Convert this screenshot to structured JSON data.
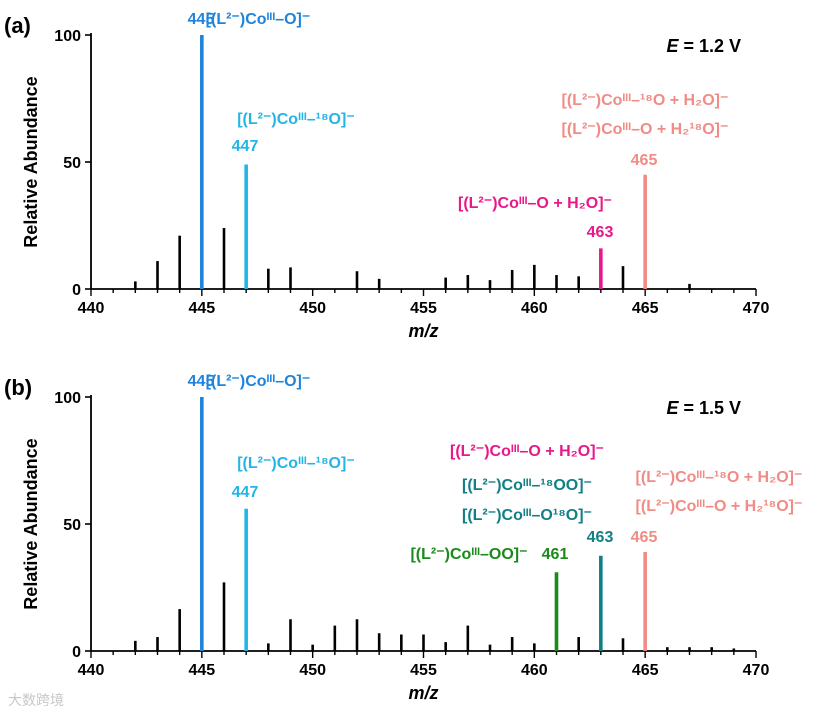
{
  "chart_data": [
    {
      "type": "bar",
      "panel_label": "(a)",
      "condition_label": "E",
      "condition_value": "= 1.2 V",
      "xlabel": "m/z",
      "ylabel": "Relative Abundance",
      "xlim": [
        440,
        470
      ],
      "ylim": [
        0,
        100
      ],
      "xticks": [
        "440",
        "445",
        "450",
        "455",
        "460",
        "465",
        "470"
      ],
      "yticks": [
        "0",
        "50",
        "100"
      ],
      "x": [
        442,
        443,
        444,
        445,
        446,
        447,
        448,
        449,
        452,
        453,
        456,
        457,
        458,
        459,
        460,
        461,
        462,
        463,
        464,
        465,
        467
      ],
      "values": [
        3,
        11,
        21,
        100,
        24,
        49,
        8,
        8.5,
        7,
        4,
        4.5,
        5.5,
        3.5,
        7.5,
        9.5,
        5.5,
        5,
        16,
        9,
        45,
        2
      ],
      "colors": [
        "#000000",
        "#000000",
        "#000000",
        "#1f83dc",
        "#000000",
        "#22b5e6",
        "#000000",
        "#000000",
        "#000000",
        "#000000",
        "#000000",
        "#000000",
        "#000000",
        "#000000",
        "#000000",
        "#000000",
        "#000000",
        "#e8178a",
        "#000000",
        "#f08c85",
        "#000000"
      ],
      "peaks": [
        {
          "mz": 445,
          "color": "#1f83dc",
          "number": "445",
          "line1": "[(L²⁻)Coᴵᴵᴵ–O]⁻"
        },
        {
          "mz": 447,
          "color": "#22b5e6",
          "number": "447",
          "line1": "[(L²⁻)Coᴵᴵᴵ–¹⁸O]⁻"
        },
        {
          "mz": 463,
          "color": "#e8178a",
          "number": "463",
          "line1": "[(L²⁻)Coᴵᴵᴵ–O + H₂O]⁻"
        },
        {
          "mz": 465,
          "color": "#f08c85",
          "number": "465",
          "line1": "[(L²⁻)Coᴵᴵᴵ–¹⁸O + H₂O]⁻",
          "line2": "[(L²⁻)Coᴵᴵᴵ–O + H₂¹⁸O]⁻"
        }
      ]
    },
    {
      "type": "bar",
      "panel_label": "(b)",
      "condition_label": "E",
      "condition_value": "= 1.5 V",
      "xlabel": "m/z",
      "ylabel": "Relative Abundance",
      "xlim": [
        440,
        470
      ],
      "ylim": [
        0,
        100
      ],
      "xticks": [
        "440",
        "445",
        "450",
        "455",
        "460",
        "465",
        "470"
      ],
      "yticks": [
        "0",
        "50",
        "100"
      ],
      "x": [
        442,
        443,
        444,
        445,
        446,
        447,
        448,
        449,
        450,
        451,
        452,
        453,
        454,
        455,
        456,
        457,
        458,
        459,
        460,
        461,
        462,
        463,
        464,
        465,
        466,
        467,
        468,
        469
      ],
      "values": [
        4,
        5.5,
        16.5,
        100,
        27,
        56,
        3,
        12.5,
        2.5,
        10,
        12.5,
        7,
        6.5,
        6.5,
        3.5,
        10,
        2.5,
        5.5,
        3,
        31,
        5.5,
        37.5,
        5,
        39,
        1.5,
        1.5,
        1.5,
        1
      ],
      "colors": [
        "#000000",
        "#000000",
        "#000000",
        "#1f83dc",
        "#000000",
        "#22b5e6",
        "#000000",
        "#000000",
        "#000000",
        "#000000",
        "#000000",
        "#000000",
        "#000000",
        "#000000",
        "#000000",
        "#000000",
        "#000000",
        "#000000",
        "#000000",
        "#1a8a1a",
        "#000000",
        "#127f86",
        "#000000",
        "#f08c85",
        "#000000",
        "#000000",
        "#000000",
        "#000000"
      ],
      "peaks": [
        {
          "mz": 445,
          "color": "#1f83dc",
          "number": "445",
          "line1": "[(L²⁻)Coᴵᴵᴵ–O]⁻"
        },
        {
          "mz": 447,
          "color": "#22b5e6",
          "number": "447",
          "line1": "[(L²⁻)Coᴵᴵᴵ–¹⁸O]⁻"
        },
        {
          "mz": 461,
          "color": "#1a8a1a",
          "number": "461",
          "line1": "[(L²⁻)Coᴵᴵᴵ–OO]⁻"
        },
        {
          "mz": 463,
          "color": "#127f86",
          "number": "463",
          "line1": "[(L²⁻)Coᴵᴵᴵ–¹⁸OO]⁻",
          "line2": "[(L²⁻)Coᴵᴵᴵ–O¹⁸O]⁻",
          "line0": "[(L²⁻)Coᴵᴵᴵ–O + H₂O]⁻",
          "line0_color": "#e8178a"
        },
        {
          "mz": 465,
          "color": "#f08c85",
          "number": "465",
          "line1": "[(L²⁻)Coᴵᴵᴵ–¹⁸O + H₂O]⁻",
          "line2": "[(L²⁻)Coᴵᴵᴵ–O + H₂¹⁸O]⁻"
        }
      ]
    }
  ],
  "watermark": "大数跨境"
}
